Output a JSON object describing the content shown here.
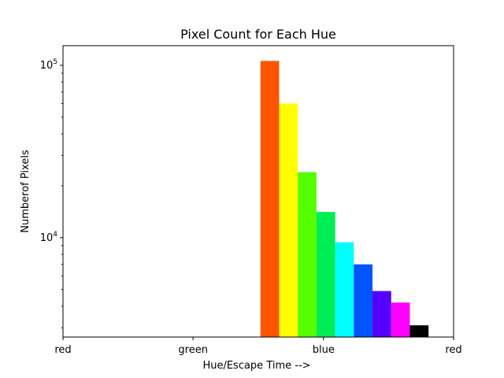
{
  "chart_data": {
    "type": "bar",
    "title": "Pixel Count for Each Hue",
    "xlabel": "Hue/Escape Time -->",
    "ylabel": "Numberof Pixels",
    "y_scale": "log",
    "xlim": [
      0,
      1
    ],
    "ylim": [
      2650,
      130000
    ],
    "x_ticks": [
      {
        "value": 0,
        "label": "red"
      },
      {
        "value": 0.333,
        "label": "green"
      },
      {
        "value": 0.667,
        "label": "blue"
      },
      {
        "value": 1,
        "label": "red"
      }
    ],
    "y_ticks": [
      {
        "value": 10000,
        "base": "10",
        "exp": "4"
      },
      {
        "value": 100000,
        "base": "10",
        "exp": "5"
      }
    ],
    "bar_width": 0.0478,
    "bars": [
      {
        "x": 0.5295,
        "value": 106000,
        "color": "#ff5500"
      },
      {
        "x": 0.5773,
        "value": 60000,
        "color": "#ffff00"
      },
      {
        "x": 0.6251,
        "value": 24000,
        "color": "#55ff00"
      },
      {
        "x": 0.6729,
        "value": 14100,
        "color": "#00ee55"
      },
      {
        "x": 0.7207,
        "value": 9400,
        "color": "#00ffff"
      },
      {
        "x": 0.7685,
        "value": 7000,
        "color": "#0055ff"
      },
      {
        "x": 0.8163,
        "value": 4900,
        "color": "#5500ff"
      },
      {
        "x": 0.8641,
        "value": 4200,
        "color": "#ff00ff"
      },
      {
        "x": 0.9119,
        "value": 3100,
        "color": "#000000"
      }
    ],
    "grid": false,
    "legend": "none"
  }
}
